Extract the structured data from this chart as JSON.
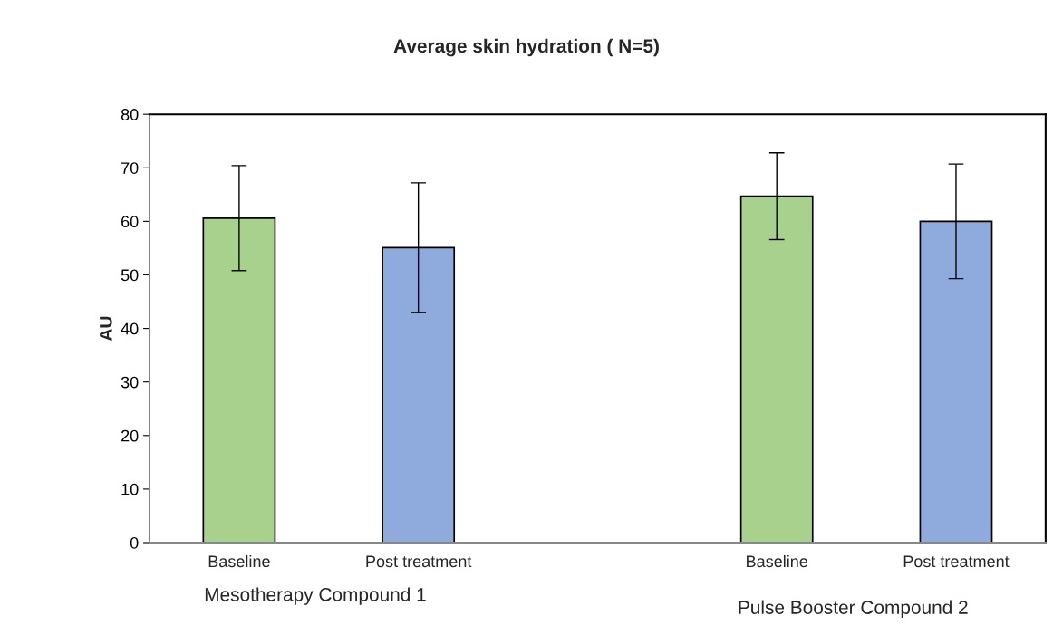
{
  "chart_data": {
    "type": "bar",
    "title": "Average skin hydration ( N=5)",
    "ylabel": "AU",
    "categories": [
      "Baseline",
      "Post treatment",
      null,
      "Baseline",
      "Post treatment"
    ],
    "values": [
      60.6,
      55.1,
      null,
      64.7,
      60.0
    ],
    "errors": [
      9.8,
      12.1,
      null,
      8.1,
      10.7
    ],
    "colors": [
      "#a9d18e",
      "#8faadc",
      null,
      "#a9d18e",
      "#8faadc"
    ],
    "ylim": [
      0,
      80
    ],
    "yticks": [
      0,
      10,
      20,
      30,
      40,
      50,
      60,
      70,
      80
    ],
    "annotations": [
      "Mesotherapy Compound 1",
      "Pulse Booster Compound 2"
    ],
    "grid": false,
    "legend": false
  }
}
